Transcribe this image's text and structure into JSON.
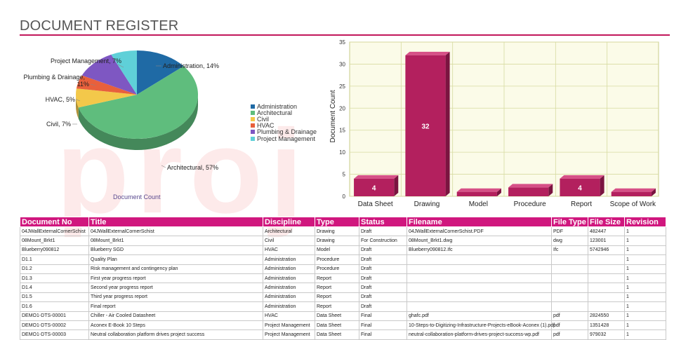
{
  "page": {
    "title": "DOCUMENT REGISTER"
  },
  "colors": {
    "accent": "#c2185b",
    "header_bg": "#d0177e",
    "bar_fill": "#b3205e",
    "pie": [
      "#1f6aa5",
      "#5fbd7d",
      "#f3c84a",
      "#e8603c",
      "#7e57c2",
      "#5fd0d8"
    ]
  },
  "charts": {
    "pie_caption": "Document Count",
    "pie_labels": [
      "Administration, 14%",
      "Architectural, 57%",
      "Civil, 7%",
      "HVAC, 5%",
      "Plumbing & Drainage,",
      "11%",
      "Project Management, 7%"
    ],
    "legend": [
      "Administration",
      "Architectural",
      "Civil",
      "HVAC",
      "Plumbing & Drainage",
      "Project Management"
    ],
    "bar_ylabel": "Document Count",
    "bar_value_labels": [
      "4",
      "32",
      "4"
    ]
  },
  "chart_data": [
    {
      "type": "pie",
      "categories": [
        "Administration",
        "Architectural",
        "Civil",
        "HVAC",
        "Plumbing & Drainage",
        "Project Management"
      ],
      "values": [
        14,
        57,
        7,
        5,
        11,
        7
      ],
      "xlabel": "Document Count"
    },
    {
      "type": "bar",
      "categories": [
        "Data Sheet",
        "Drawing",
        "Model",
        "Procedure",
        "Report",
        "Scope of Work"
      ],
      "values": [
        4,
        32,
        1,
        2,
        4,
        1
      ],
      "ylabel": "Document Count",
      "ylim": [
        0,
        35
      ],
      "yticks": [
        0,
        5,
        10,
        15,
        20,
        25,
        30,
        35
      ],
      "grid": true
    }
  ],
  "table": {
    "headers": [
      "Document No",
      "Title",
      "Discipline",
      "Type",
      "Status",
      "Filename",
      "File Type",
      "File Size",
      "Revision"
    ],
    "rows": [
      [
        "04JWallExternalCornerSchist",
        "04JWallExternalCornerSchist",
        "Architectural",
        "Drawing",
        "Draft",
        "04JWallExternalCornerSchist.PDF",
        "PDF",
        "482447",
        "1"
      ],
      [
        "08Mount_Brkt1",
        "08Mount_Brkt1",
        "Civil",
        "Drawing",
        "For Construction",
        "08Mount_Brkt1.dwg",
        "dwg",
        "123001",
        "1"
      ],
      [
        "Blueberry090812",
        "Blueberry SGD",
        "HVAC",
        "Model",
        "Draft",
        "Blueberry090812.Ifc",
        "Ifc",
        "5742946",
        "1"
      ],
      [
        "D1.1",
        "Quality Plan",
        "Administration",
        "Procedure",
        "Draft",
        "",
        "",
        "",
        "1"
      ],
      [
        "D1.2",
        "Risk management and contingency plan",
        "Administration",
        "Procedure",
        "Draft",
        "",
        "",
        "",
        "1"
      ],
      [
        "D1.3",
        "First year progress report",
        "Administration",
        "Report",
        "Draft",
        "",
        "",
        "",
        "1"
      ],
      [
        "D1.4",
        "Second year progress report",
        "Administration",
        "Report",
        "Draft",
        "",
        "",
        "",
        "1"
      ],
      [
        "D1.5",
        "Third year progress report",
        "Administration",
        "Report",
        "Draft",
        "",
        "",
        "",
        "1"
      ],
      [
        "D1.6",
        "Final report",
        "Administration",
        "Report",
        "Draft",
        "",
        "",
        "",
        "1"
      ],
      [
        "DEMO1-DTS-00001",
        "Chiller - Air Cooled Datasheet",
        "HVAC",
        "Data Sheet",
        "Final",
        "ghafc.pdf",
        "pdf",
        "2824550",
        "1"
      ],
      [
        "DEMO1-DTS-00002",
        "Aconex E-Book 10 Steps",
        "Project Management",
        "Data Sheet",
        "Final",
        "10-Steps-to-Digitizing-Infrastructure-Projects-eBook-Aconex (1).pdf",
        "pdf",
        "1351428",
        "1"
      ],
      [
        "DEMO1-DTS-00003",
        "Neutral collaboration platform drives project success",
        "Project Management",
        "Data Sheet",
        "Final",
        "neutral-collaboration-platform-drives-project-success-wp.pdf",
        "pdf",
        "979032",
        "1"
      ]
    ]
  }
}
